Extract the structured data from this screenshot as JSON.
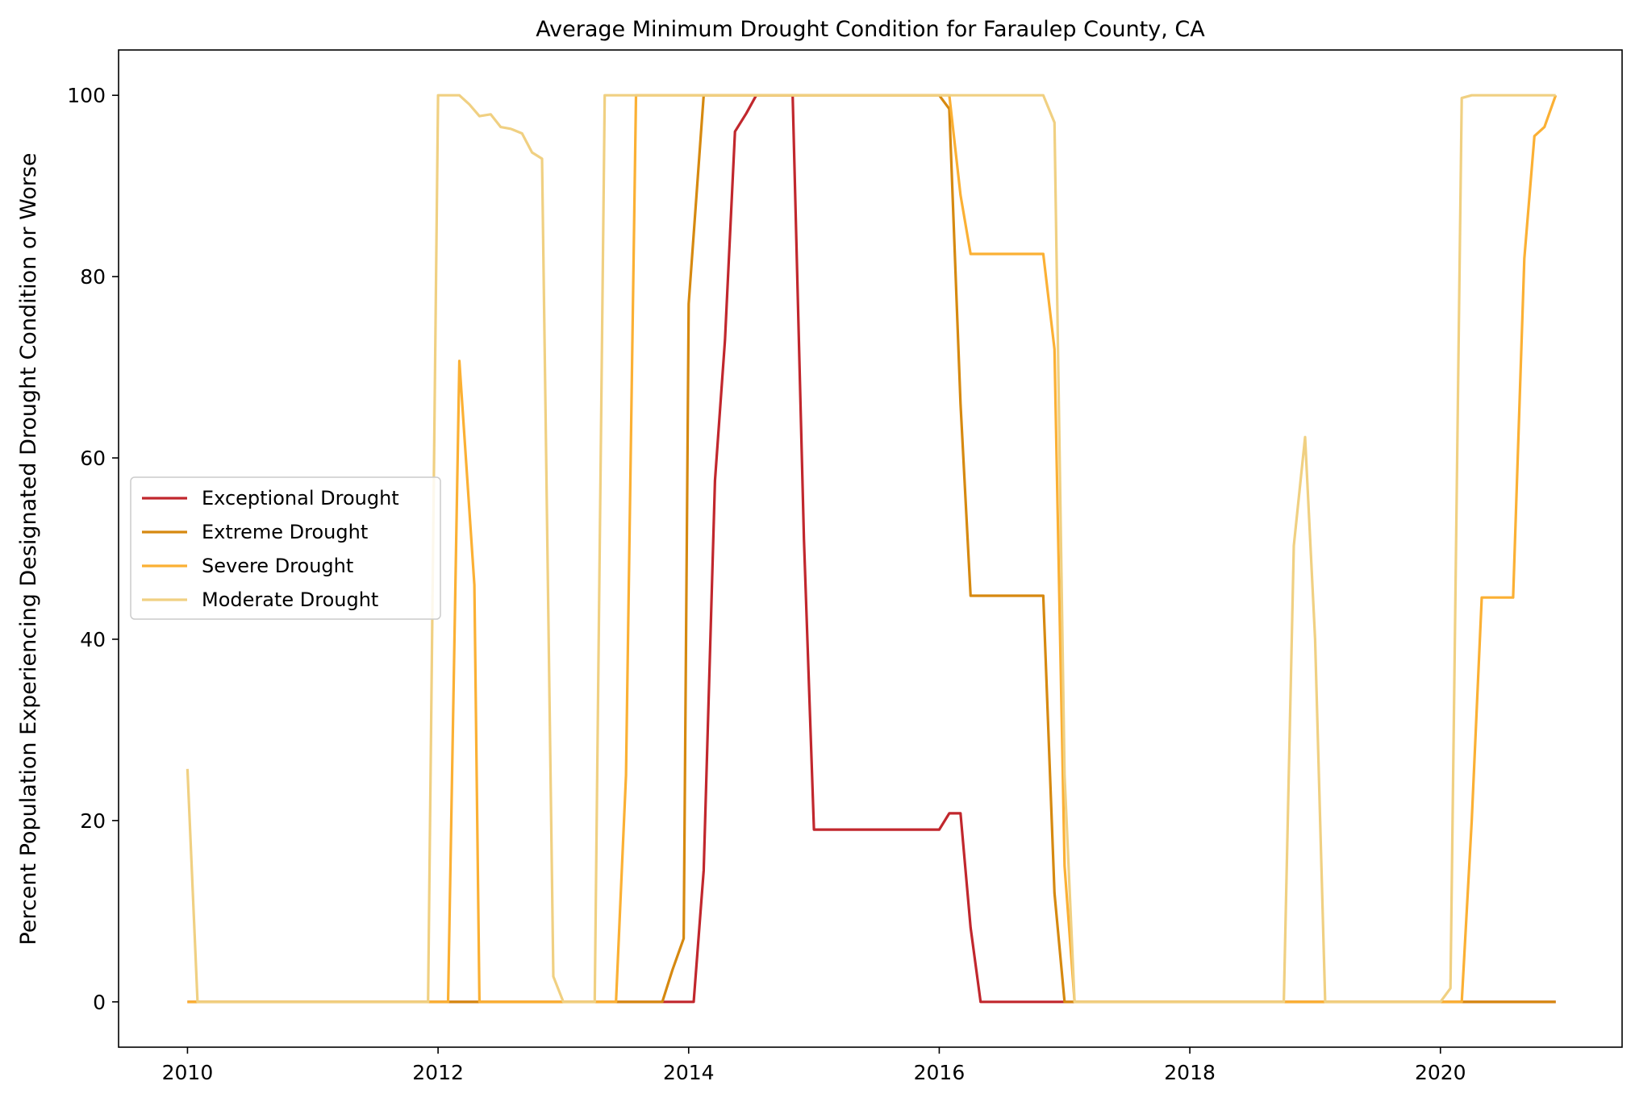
{
  "chart_data": {
    "type": "line",
    "title": "Average Minimum Drought Condition for Faraulep County, CA",
    "xlabel": "",
    "ylabel": "Percent Population Experiencing Designated Drought Condition or Worse",
    "xlim": [
      2009.45,
      2021.45
    ],
    "ylim": [
      -5,
      105
    ],
    "xticks": [
      2010,
      2012,
      2014,
      2016,
      2018,
      2020
    ],
    "yticks": [
      0,
      20,
      40,
      60,
      80,
      100
    ],
    "grid": false,
    "legend_position": "center-left",
    "series": [
      {
        "name": "Exceptional Drought",
        "color": "#c1272d",
        "points": [
          [
            2010.0,
            0
          ],
          [
            2013.96,
            0
          ],
          [
            2014.04,
            0
          ],
          [
            2014.12,
            14.5
          ],
          [
            2014.21,
            57.5
          ],
          [
            2014.29,
            73
          ],
          [
            2014.37,
            96
          ],
          [
            2014.46,
            98
          ],
          [
            2014.54,
            100
          ],
          [
            2014.62,
            100
          ],
          [
            2014.71,
            100
          ],
          [
            2014.83,
            100
          ],
          [
            2014.92,
            51
          ],
          [
            2015.0,
            19
          ],
          [
            2015.5,
            19
          ],
          [
            2016.0,
            19
          ],
          [
            2016.08,
            20.8
          ],
          [
            2016.17,
            20.8
          ],
          [
            2016.25,
            8.2
          ],
          [
            2016.33,
            0
          ],
          [
            2017.0,
            0
          ],
          [
            2018.0,
            0
          ],
          [
            2019.0,
            0
          ],
          [
            2020.0,
            0
          ],
          [
            2020.92,
            0
          ]
        ]
      },
      {
        "name": "Extreme Drought",
        "color": "#d68910",
        "points": [
          [
            2010.0,
            0
          ],
          [
            2013.0,
            0
          ],
          [
            2013.79,
            0
          ],
          [
            2013.87,
            3.5
          ],
          [
            2013.96,
            7
          ],
          [
            2014.0,
            77
          ],
          [
            2014.12,
            100
          ],
          [
            2015.0,
            100
          ],
          [
            2016.0,
            100
          ],
          [
            2016.08,
            98.5
          ],
          [
            2016.17,
            66
          ],
          [
            2016.25,
            44.8
          ],
          [
            2016.83,
            44.8
          ],
          [
            2016.92,
            12
          ],
          [
            2017.0,
            0
          ],
          [
            2018.0,
            0
          ],
          [
            2019.0,
            0
          ],
          [
            2020.0,
            0
          ],
          [
            2020.92,
            0
          ]
        ]
      },
      {
        "name": "Severe Drought",
        "color": "#fbb034",
        "points": [
          [
            2010.0,
            0
          ],
          [
            2012.0,
            0
          ],
          [
            2012.08,
            0
          ],
          [
            2012.17,
            70.7
          ],
          [
            2012.29,
            46
          ],
          [
            2012.33,
            0
          ],
          [
            2013.0,
            0
          ],
          [
            2013.33,
            0
          ],
          [
            2013.42,
            0
          ],
          [
            2013.5,
            25
          ],
          [
            2013.58,
            100
          ],
          [
            2014.0,
            100
          ],
          [
            2015.0,
            100
          ],
          [
            2016.08,
            100
          ],
          [
            2016.17,
            89
          ],
          [
            2016.25,
            82.5
          ],
          [
            2016.83,
            82.5
          ],
          [
            2016.92,
            72
          ],
          [
            2017.0,
            15
          ],
          [
            2017.08,
            0
          ],
          [
            2018.0,
            0
          ],
          [
            2019.0,
            0
          ],
          [
            2020.0,
            0
          ],
          [
            2020.17,
            0
          ],
          [
            2020.25,
            20
          ],
          [
            2020.33,
            44.6
          ],
          [
            2020.58,
            44.6
          ],
          [
            2020.67,
            82
          ],
          [
            2020.75,
            95.5
          ],
          [
            2020.83,
            96.5
          ],
          [
            2020.92,
            100
          ]
        ]
      },
      {
        "name": "Moderate Drought",
        "color": "#f0d082",
        "points": [
          [
            2010.0,
            25.7
          ],
          [
            2010.08,
            0
          ],
          [
            2011.0,
            0
          ],
          [
            2011.92,
            0
          ],
          [
            2012.0,
            100
          ],
          [
            2012.17,
            100
          ],
          [
            2012.25,
            99
          ],
          [
            2012.33,
            97.7
          ],
          [
            2012.42,
            97.9
          ],
          [
            2012.5,
            96.5
          ],
          [
            2012.58,
            96.3
          ],
          [
            2012.67,
            95.8
          ],
          [
            2012.75,
            93.7
          ],
          [
            2012.83,
            93
          ],
          [
            2012.92,
            2.8
          ],
          [
            2013.0,
            0
          ],
          [
            2013.25,
            0
          ],
          [
            2013.33,
            100
          ],
          [
            2014.0,
            100
          ],
          [
            2015.0,
            100
          ],
          [
            2016.0,
            100
          ],
          [
            2016.5,
            100
          ],
          [
            2016.83,
            100
          ],
          [
            2016.92,
            97
          ],
          [
            2017.0,
            25
          ],
          [
            2017.08,
            0
          ],
          [
            2018.0,
            0
          ],
          [
            2018.75,
            0
          ],
          [
            2018.83,
            50.3
          ],
          [
            2018.92,
            62.3
          ],
          [
            2019.0,
            40
          ],
          [
            2019.08,
            0
          ],
          [
            2019.92,
            0
          ],
          [
            2020.0,
            0
          ],
          [
            2020.08,
            1.5
          ],
          [
            2020.17,
            99.7
          ],
          [
            2020.25,
            100
          ],
          [
            2020.92,
            100
          ]
        ]
      }
    ]
  }
}
